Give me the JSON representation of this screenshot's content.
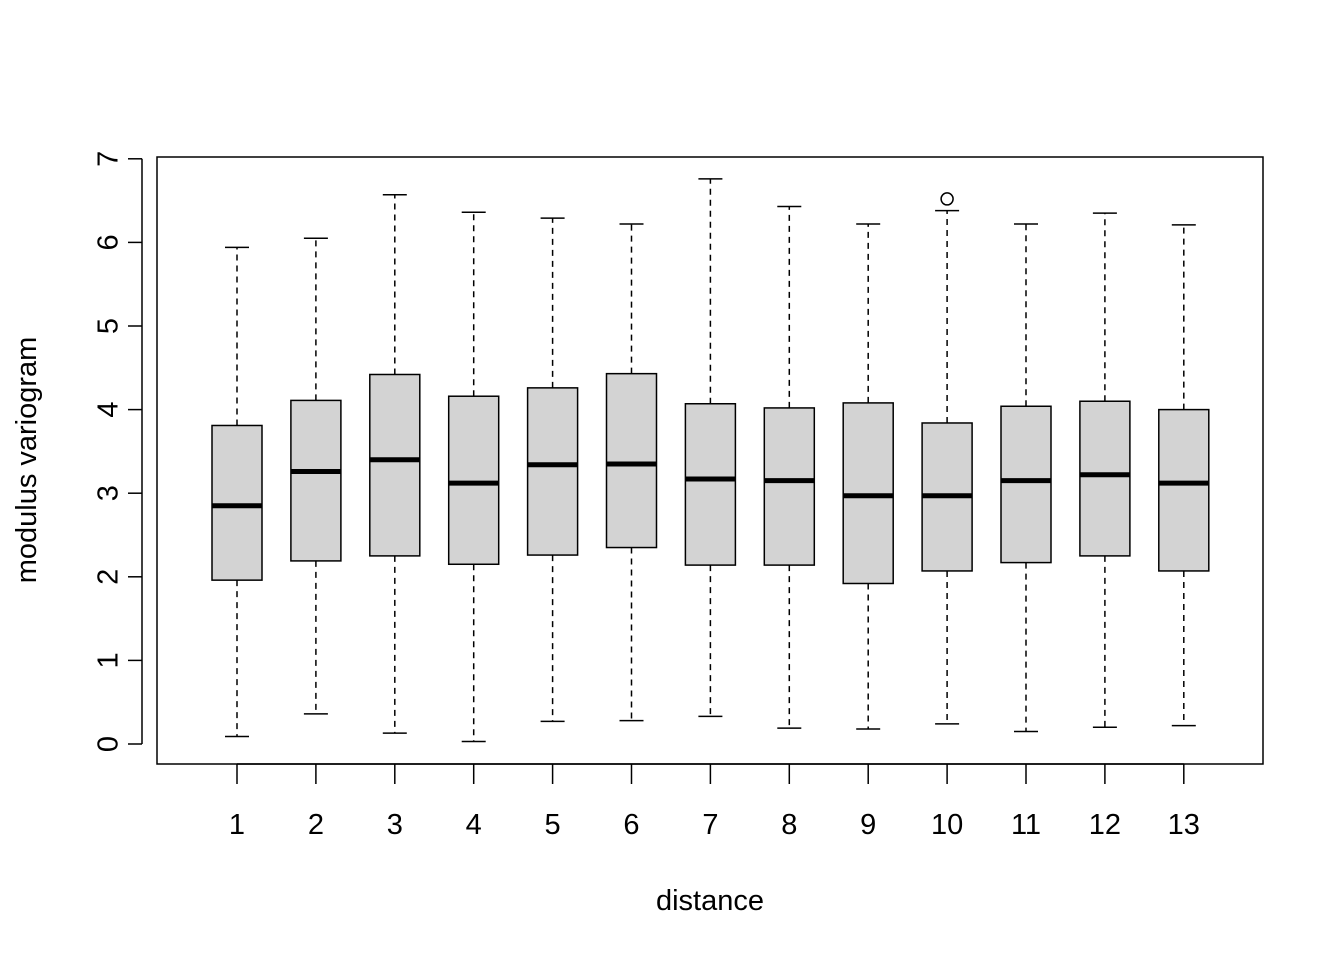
{
  "chart_data": {
    "type": "boxplot",
    "title": "",
    "xlabel": "distance",
    "ylabel": "modulus variogram",
    "ylim": [
      -0.25,
      7
    ],
    "y_ticks": [
      0,
      1,
      2,
      3,
      4,
      5,
      6,
      7
    ],
    "box_fill": "#d3d3d3",
    "grid": false,
    "categories": [
      "1",
      "2",
      "3",
      "4",
      "5",
      "6",
      "7",
      "8",
      "9",
      "10",
      "11",
      "12",
      "13"
    ],
    "boxes": [
      {
        "category": "1",
        "whisker_low": 0.09,
        "q1": 1.96,
        "median": 2.85,
        "q3": 3.81,
        "whisker_high": 5.94,
        "outliers": []
      },
      {
        "category": "2",
        "whisker_low": 0.36,
        "q1": 2.19,
        "median": 3.26,
        "q3": 4.11,
        "whisker_high": 6.05,
        "outliers": []
      },
      {
        "category": "3",
        "whisker_low": 0.13,
        "q1": 2.25,
        "median": 3.4,
        "q3": 4.42,
        "whisker_high": 6.57,
        "outliers": []
      },
      {
        "category": "4",
        "whisker_low": 0.03,
        "q1": 2.15,
        "median": 3.12,
        "q3": 4.16,
        "whisker_high": 6.36,
        "outliers": []
      },
      {
        "category": "5",
        "whisker_low": 0.27,
        "q1": 2.26,
        "median": 3.34,
        "q3": 4.26,
        "whisker_high": 6.29,
        "outliers": []
      },
      {
        "category": "6",
        "whisker_low": 0.28,
        "q1": 2.35,
        "median": 3.35,
        "q3": 4.43,
        "whisker_high": 6.22,
        "outliers": []
      },
      {
        "category": "7",
        "whisker_low": 0.33,
        "q1": 2.14,
        "median": 3.17,
        "q3": 4.07,
        "whisker_high": 6.76,
        "outliers": []
      },
      {
        "category": "8",
        "whisker_low": 0.19,
        "q1": 2.14,
        "median": 3.15,
        "q3": 4.02,
        "whisker_high": 6.43,
        "outliers": []
      },
      {
        "category": "9",
        "whisker_low": 0.18,
        "q1": 1.92,
        "median": 2.97,
        "q3": 4.08,
        "whisker_high": 6.22,
        "outliers": []
      },
      {
        "category": "10",
        "whisker_low": 0.24,
        "q1": 2.07,
        "median": 2.97,
        "q3": 3.84,
        "whisker_high": 6.38,
        "outliers": [
          6.52
        ]
      },
      {
        "category": "11",
        "whisker_low": 0.15,
        "q1": 2.17,
        "median": 3.15,
        "q3": 4.04,
        "whisker_high": 6.22,
        "outliers": []
      },
      {
        "category": "12",
        "whisker_low": 0.2,
        "q1": 2.25,
        "median": 3.22,
        "q3": 4.1,
        "whisker_high": 6.35,
        "outliers": []
      },
      {
        "category": "13",
        "whisker_low": 0.22,
        "q1": 2.07,
        "median": 3.12,
        "q3": 4.0,
        "whisker_high": 6.21,
        "outliers": []
      }
    ]
  }
}
